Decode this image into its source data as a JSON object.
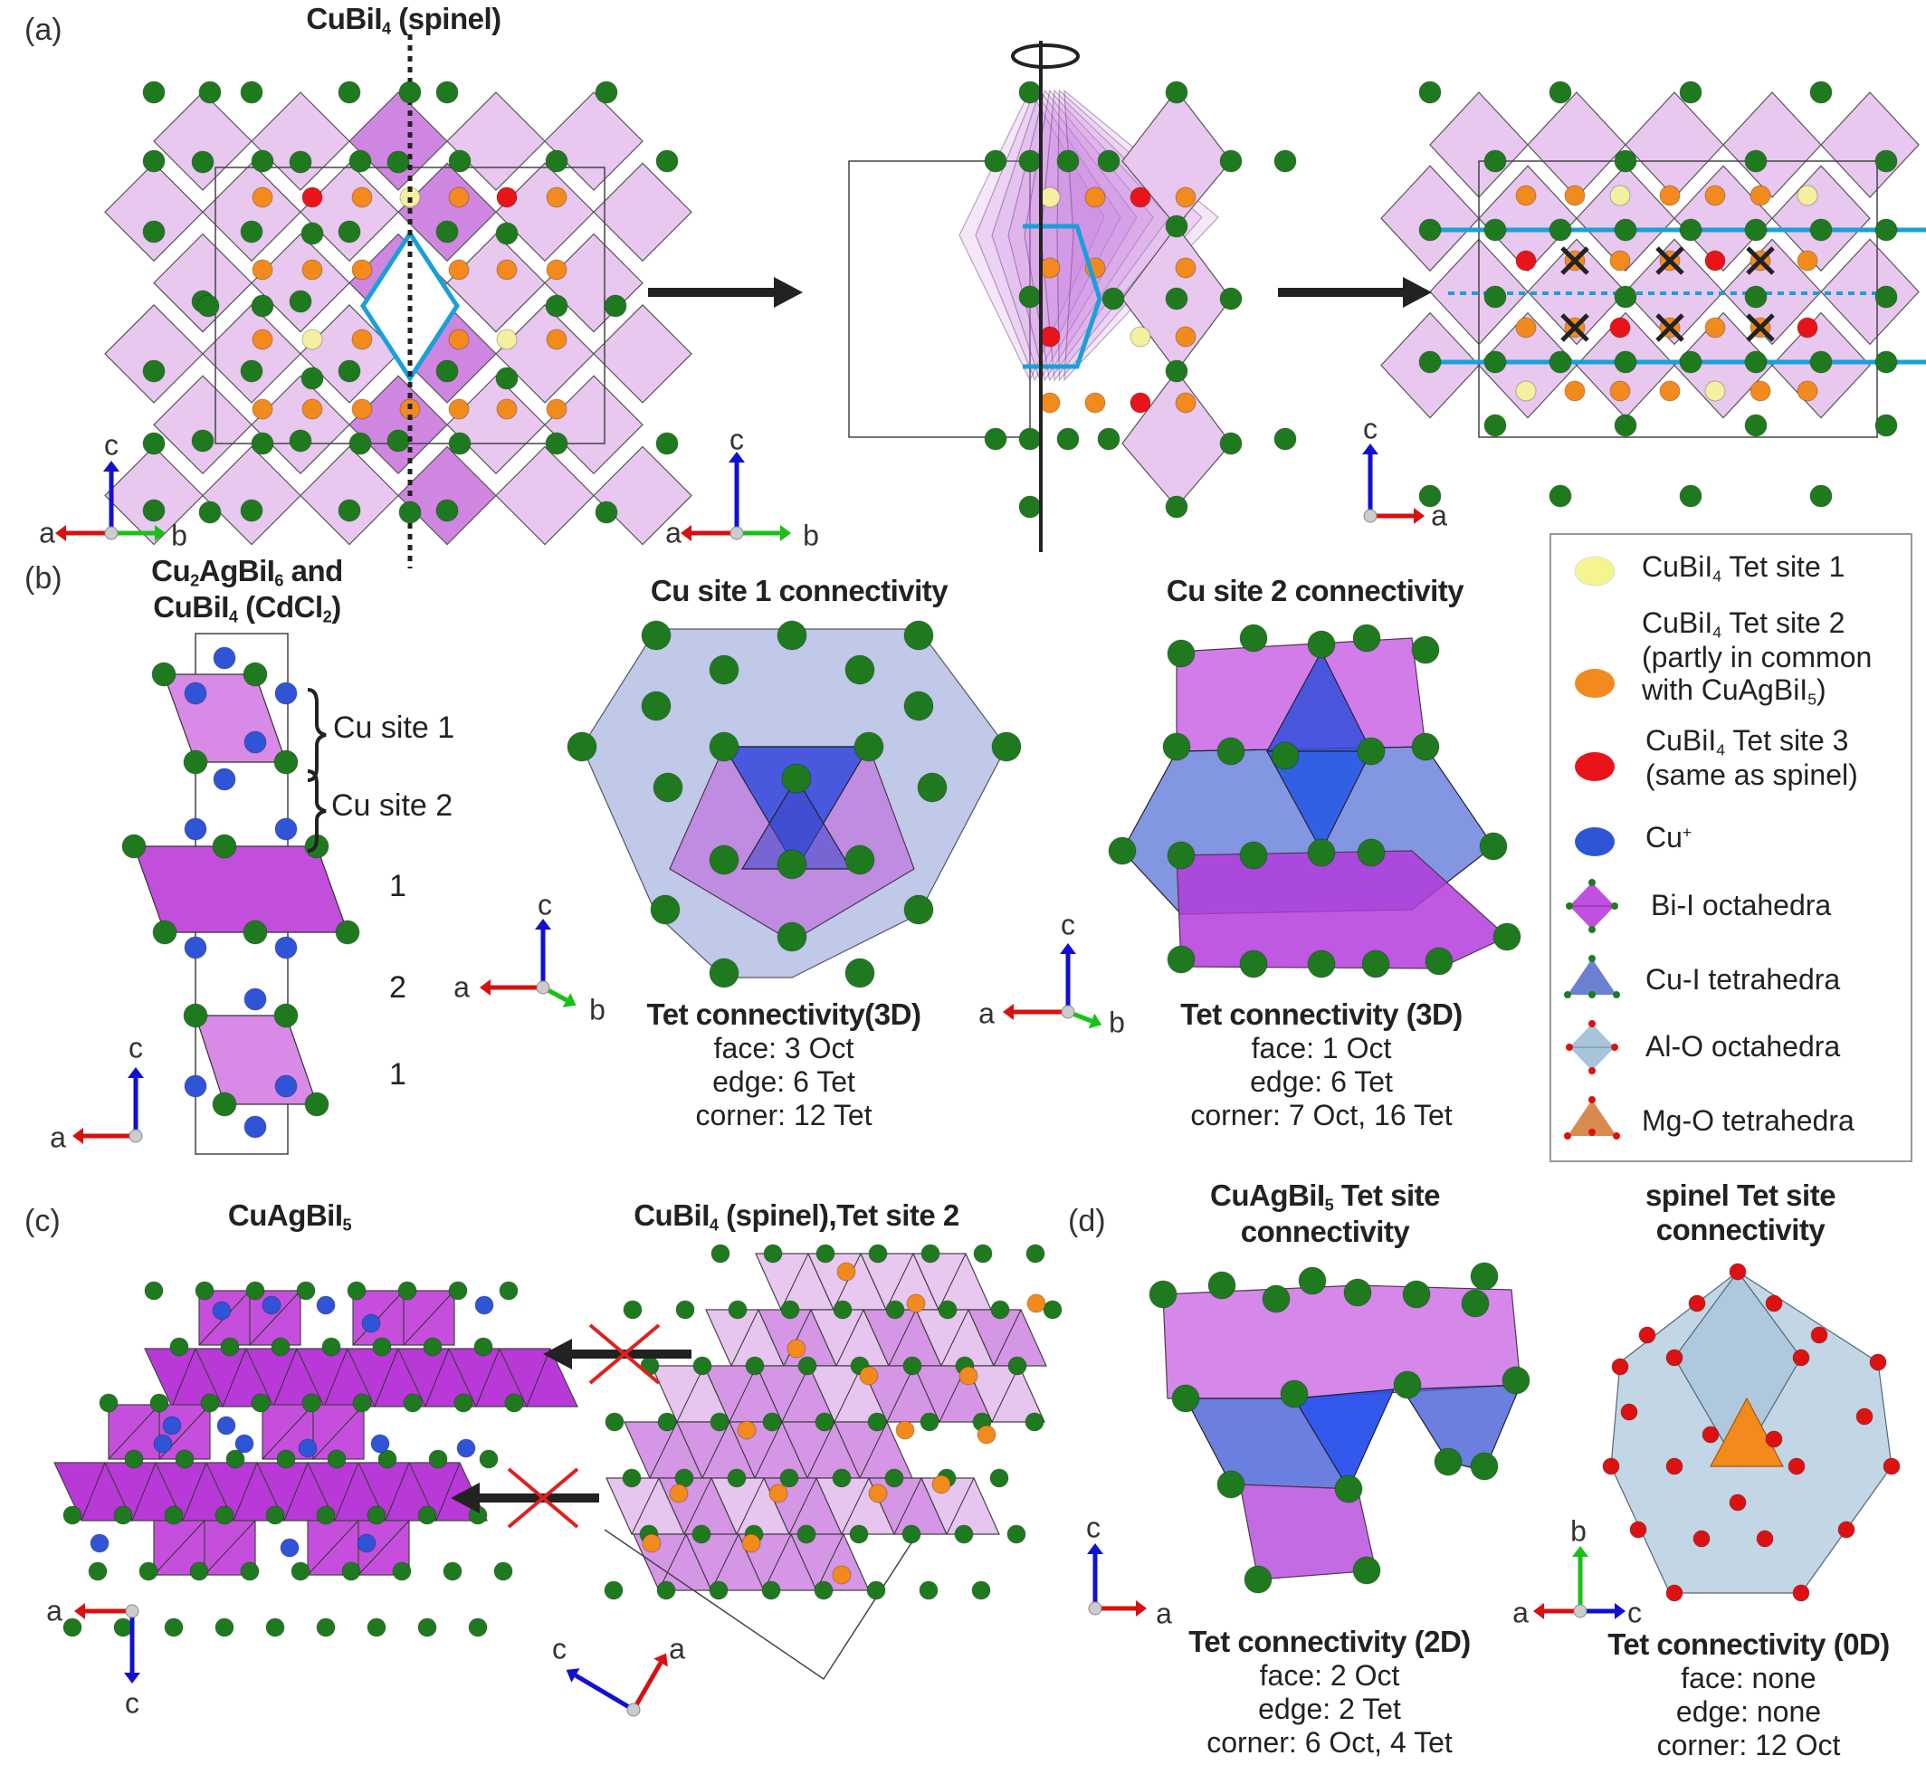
{
  "panels": {
    "a": {
      "label": "(a)",
      "title": {
        "main": "CuBiI",
        "sub": "4",
        "rest": " (spinel)"
      },
      "axes": [
        {
          "a": "a",
          "b": "b",
          "c": "c"
        },
        {
          "a": "a",
          "b": "b",
          "c": "c"
        },
        {
          "a": "a",
          "c": "c"
        }
      ]
    },
    "b": {
      "label": "(b)",
      "title_line1": {
        "p1": "Cu",
        "s1": "2",
        "p2": "AgBiI",
        "s2": "6",
        "p3": " and"
      },
      "title_line2": {
        "p1": "CuBiI",
        "s1": "4",
        "p2": " (CdCl",
        "s2": "2",
        "p3": ")"
      },
      "cu_site_1": "Cu site 1",
      "cu_site_2": "Cu site 2",
      "layer_numbers": [
        "1",
        "2",
        "1"
      ],
      "site1": {
        "title": "Cu site 1 connectivity",
        "heading": "Tet connectivity(3D)",
        "lines": [
          "face: 3 Oct",
          "edge: 6 Tet",
          "corner: 12 Tet"
        ]
      },
      "site2": {
        "title": "Cu site 2 connectivity",
        "heading": "Tet connectivity (3D)",
        "lines": [
          "face: 1 Oct",
          "edge: 6 Tet",
          "corner: 7 Oct, 16 Tet"
        ]
      },
      "axes": [
        {
          "a": "a",
          "c": "c"
        },
        {
          "a": "a",
          "b": "b",
          "c": "c"
        },
        {
          "a": "a",
          "b": "b",
          "c": "c"
        }
      ]
    },
    "c": {
      "label": "(c)",
      "left_title": {
        "main": "CuAgBiI",
        "sub": "5"
      },
      "right_title": {
        "main": "CuBiI",
        "sub": "4",
        "rest": " (spinel),Tet site 2"
      },
      "axes": [
        {
          "a": "a",
          "c": "c"
        },
        {
          "a": "a",
          "c": "c"
        }
      ]
    },
    "d": {
      "label": "(d)",
      "left": {
        "title1": {
          "main": "CuAgBiI",
          "sub": "5",
          "rest": " Tet site"
        },
        "title2": "connectivity",
        "heading": "Tet connectivity (2D)",
        "lines": [
          "face: 2 Oct",
          "edge: 2 Tet",
          "corner: 6 Oct, 4 Tet"
        ]
      },
      "right": {
        "title1": "spinel Tet site",
        "title2": "connectivity",
        "heading": "Tet connectivity (0D)",
        "lines": [
          "face: none",
          "edge: none",
          "corner: 12 Oct"
        ]
      },
      "axes": [
        {
          "a": "a",
          "c": "c"
        },
        {
          "a": "a",
          "b": "b",
          "c": "c"
        }
      ]
    }
  },
  "legend": {
    "items": [
      {
        "main": "CuBiI",
        "sub": "4",
        "rest": " Tet site 1",
        "color": "#f5f590",
        "icon": "yellow-sphere"
      },
      {
        "main": "CuBiI",
        "sub": "4",
        "rest": " Tet site 2",
        "line2": "(partly in common",
        "line3a": "with CuAgBiI",
        "line3sub": "5",
        "line3b": ")",
        "color": "#f28a1e",
        "icon": "orange-sphere"
      },
      {
        "main": "CuBiI",
        "sub": "4",
        "rest": " Tet site 3",
        "line2": "(same as spinel)",
        "color": "#e8141a",
        "icon": "red-sphere"
      },
      {
        "main": "Cu",
        "sup": "+",
        "color": "#2f55d6",
        "icon": "blue-sphere"
      },
      {
        "label": "Bi-I octahedra",
        "color": "#c050e0",
        "icon": "octahedron"
      },
      {
        "label": "Cu-I tetrahedra",
        "color": "#6b80d0",
        "icon": "tetrahedron"
      },
      {
        "label": "Al-O octahedra",
        "color": "#a8c4d8",
        "icon": "octahedron"
      },
      {
        "label": "Mg-O tetrahedra",
        "color": "#d98a50",
        "icon": "tetrahedron"
      }
    ]
  },
  "colors": {
    "iodine": "#1f7a1f",
    "oxygen": "#dd1111",
    "bi_oct_light": "#e8c8ef",
    "bi_oct": "#c24fdc",
    "cu_tet": "#4f6ad8",
    "al_oct": "#b7ccdc",
    "cyan_marker": "#1aa0d8"
  }
}
